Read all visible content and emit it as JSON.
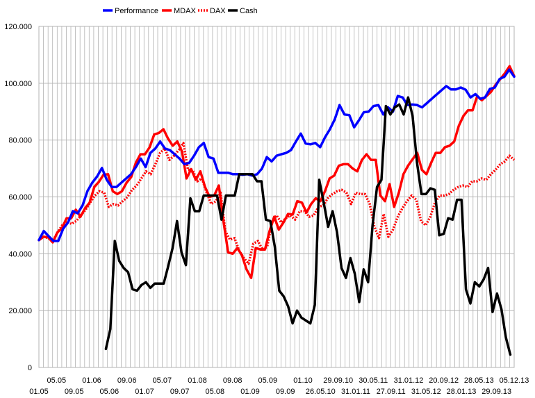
{
  "chart_data": {
    "type": "line",
    "title": "",
    "xlabel": "",
    "ylabel": "",
    "ylim": [
      0,
      120000
    ],
    "y_ticks": [
      "0",
      "20.000",
      "40.000",
      "60.000",
      "80.000",
      "100.000",
      "120.000"
    ],
    "y_tick_values": [
      0,
      20000,
      40000,
      60000,
      80000,
      100000,
      120000
    ],
    "x_tick_labels": [
      "01.05",
      "05.05",
      "09.05",
      "01.06",
      "05.06",
      "09.06",
      "01.07",
      "05.07",
      "09.07",
      "01.08",
      "05.08",
      "09.08",
      "01.09",
      "05.09",
      "09.09",
      "01.10",
      "26.05.10",
      "29.09.10",
      "31.01.11",
      "30.05.11",
      "27.09.11",
      "31.01.12",
      "31.05.12",
      "20.09.12",
      "28.01.13",
      "28.05.13",
      "29.09.13",
      "05.12.13"
    ],
    "grid": true,
    "legend_position": "top",
    "series": [
      {
        "name": "Performance",
        "color": "#0000ff",
        "style": "solid",
        "values": [
          44800,
          48000,
          46200,
          44500,
          44500,
          48800,
          51000,
          55000,
          54200,
          57000,
          62000,
          65000,
          67200,
          70200,
          66000,
          63500,
          63500,
          65000,
          66500,
          68000,
          70500,
          73500,
          70500,
          75500,
          77000,
          79500,
          77000,
          76500,
          75000,
          73500,
          71500,
          72000,
          74500,
          77500,
          79000,
          74000,
          73500,
          68500,
          68500,
          68500,
          68000,
          68000,
          67800,
          68000,
          67500,
          68000,
          70000,
          74000,
          72500,
          74500,
          75000,
          75500,
          76500,
          79500,
          82300,
          78800,
          78500,
          79000,
          77500,
          81000,
          83800,
          87300,
          92300,
          89000,
          88800,
          84500,
          87000,
          89800,
          90000,
          92000,
          92300,
          89000,
          91500,
          90000,
          95500,
          95000,
          92300,
          92500,
          92300,
          91500,
          93000,
          94500,
          96000,
          97500,
          99000,
          97800,
          97800,
          98500,
          97700,
          95000,
          96200,
          94500,
          95000,
          98000,
          98500,
          101500,
          102300,
          104800,
          102300
        ]
      },
      {
        "name": "MDAX",
        "color": "#ff0000",
        "style": "solid",
        "values": [
          44800,
          46000,
          45800,
          44000,
          47500,
          49000,
          52500,
          52500,
          55500,
          53000,
          56000,
          58000,
          63500,
          65300,
          67800,
          68000,
          62000,
          61000,
          62000,
          65000,
          67000,
          72000,
          75000,
          75000,
          77500,
          82000,
          82500,
          83800,
          80500,
          78000,
          79500,
          76000,
          66500,
          69800,
          66000,
          69000,
          63500,
          60000,
          60500,
          64000,
          51500,
          40500,
          40000,
          42000,
          39500,
          34500,
          31500,
          42000,
          41500,
          41500,
          48000,
          53000,
          48500,
          51000,
          54000,
          53800,
          58500,
          58000,
          54500,
          57500,
          59500,
          58500,
          62000,
          66500,
          67500,
          71000,
          71500,
          71500,
          70000,
          69000,
          73000,
          75000,
          73000,
          73000,
          60500,
          58500,
          64500,
          56500,
          61500,
          68000,
          71000,
          73300,
          75500,
          69500,
          68000,
          72000,
          75500,
          75500,
          77500,
          78000,
          79500,
          85000,
          88500,
          90500,
          90500,
          95500,
          94000,
          95500,
          97000,
          99500,
          101500,
          103500,
          106000,
          102500
        ]
      },
      {
        "name": "DAX",
        "color": "#ff0000",
        "style": "dotted",
        "values": [
          44800,
          46000,
          45500,
          44500,
          47500,
          50000,
          51500,
          50500,
          51500,
          53500,
          55500,
          58000,
          60500,
          62000,
          61500,
          56500,
          57500,
          57000,
          58500,
          60000,
          62500,
          64000,
          66500,
          69000,
          68000,
          71500,
          75500,
          77000,
          73000,
          74500,
          76500,
          79000,
          69500,
          69500,
          65500,
          66500,
          61500,
          57500,
          58500,
          61500,
          48000,
          45000,
          45500,
          41000,
          38500,
          36500,
          43500,
          44500,
          41500,
          42500,
          51000,
          53500,
          51000,
          52500,
          53500,
          52000,
          55000,
          55000,
          53000,
          53500,
          56500,
          57000,
          59500,
          61000,
          62000,
          62500,
          61500,
          57500,
          61500,
          61000,
          61000,
          57500,
          49500,
          45500,
          54000,
          46000,
          48500,
          53000,
          56000,
          58500,
          60500,
          59000,
          51500,
          50000,
          53000,
          58000,
          60500,
          60500,
          61000,
          62500,
          63500,
          64000,
          63500,
          65500,
          65500,
          66500,
          66000,
          68000,
          69500,
          71500,
          72500,
          74500,
          73000
        ]
      },
      {
        "name": "Cash",
        "color": "#000000",
        "style": "solid",
        "values": [
          6500,
          13500,
          44500,
          37500,
          35000,
          33500,
          27500,
          27000,
          29000,
          30000,
          28000,
          29500,
          29500,
          29500,
          35500,
          42000,
          51500,
          40500,
          36000,
          59500,
          55000,
          55000,
          60500,
          60500,
          60500,
          60500,
          52000,
          60500,
          60500,
          60500,
          68000,
          68000,
          68000,
          68000,
          65500,
          65500,
          52000,
          51500,
          42500,
          27000,
          25000,
          21500,
          15500,
          20000,
          17500,
          16500,
          15500,
          22000,
          66000,
          58000,
          49500,
          55000,
          47500,
          35000,
          31500,
          38500,
          33000,
          23000,
          34500,
          30000,
          50000,
          63500,
          66000,
          92000,
          89000,
          91500,
          92500,
          89000,
          95000,
          88500,
          72000,
          61000,
          61000,
          63000,
          62500,
          46500,
          47000,
          52500,
          52000,
          59000,
          59000,
          27500,
          22500,
          30000,
          28500,
          31000,
          35000,
          19500,
          26000,
          20500,
          10500,
          4500
        ]
      }
    ]
  }
}
